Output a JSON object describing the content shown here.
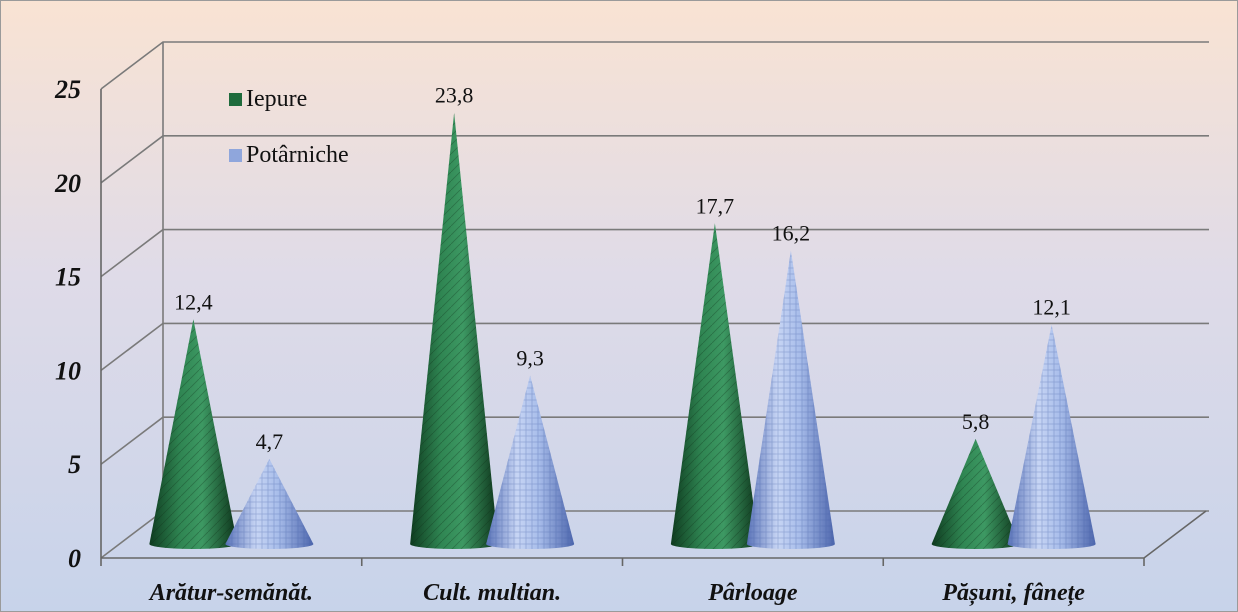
{
  "chart_data": {
    "type": "bar",
    "categories": [
      "Arătur-semănăt.",
      "Cult. multian.",
      "Pârloage",
      "Pășuni, fânețe"
    ],
    "series": [
      {
        "name": "Iepure",
        "values": [
          12.4,
          23.8,
          17.7,
          5.8
        ],
        "data_labels": [
          "12,4",
          "23,8",
          "17,7",
          "5,8"
        ]
      },
      {
        "name": "Potârniche",
        "values": [
          4.7,
          9.3,
          16.2,
          12.1
        ],
        "data_labels": [
          "4,7",
          "9,3",
          "16,2",
          "12,1"
        ]
      }
    ],
    "y_ticks": [
      "0",
      "5",
      "10",
      "15",
      "20",
      "25"
    ],
    "ylim": [
      0,
      25
    ],
    "grid": true,
    "legend_position": "top-left",
    "colors": {
      "Iepure": "#1f6b3c",
      "Potârniche": "#8fa6dc"
    },
    "shape": "cone"
  }
}
